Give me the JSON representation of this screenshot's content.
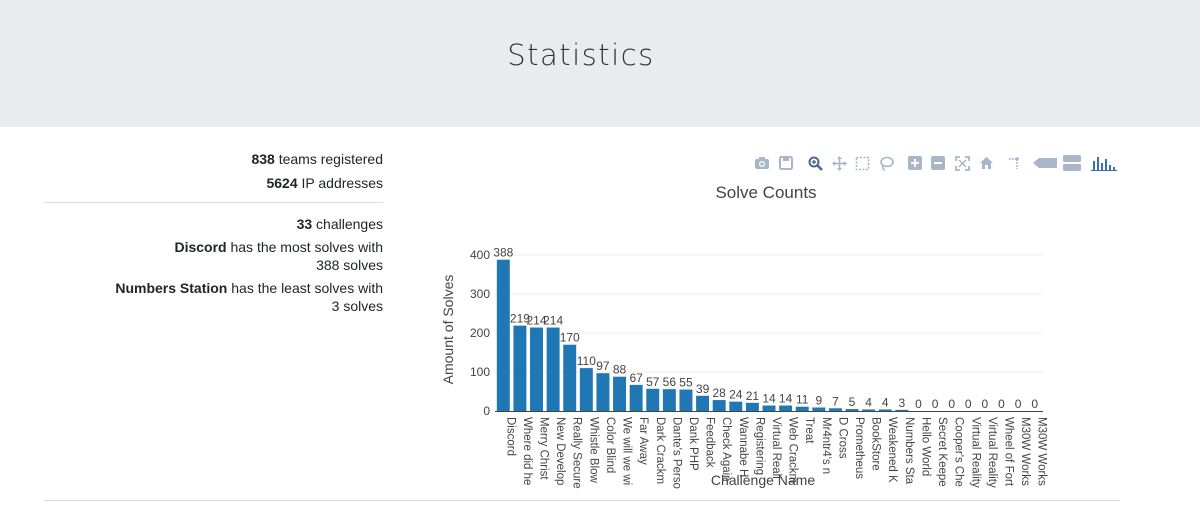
{
  "header": {
    "title": "Statistics"
  },
  "stats": {
    "teams_count": "838",
    "teams_label": " teams registered",
    "ip_count": "5624",
    "ip_label": " IP addresses",
    "challenges_count": "33",
    "challenges_label": " challenges",
    "most_name": "Discord",
    "most_label": " has the most solves with",
    "most_solves": "388 solves",
    "least_name": "Numbers Station",
    "least_label": " has the least solves with",
    "least_solves": "3 solves"
  },
  "modebar": {
    "buttons": [
      "camera-icon",
      "save-icon",
      "zoom-icon",
      "pan-icon",
      "box-select-icon",
      "lasso-select-icon",
      "zoom-in-icon",
      "zoom-out-icon",
      "autoscale-icon",
      "reset-axes-icon",
      "spike-lines-icon",
      "hover-closest-icon",
      "hover-compare-icon",
      "plotly-logo-icon"
    ],
    "icon_color": "#a8b6c8",
    "active_color": "#4a6a96"
  },
  "chart_data": {
    "type": "bar",
    "title": "Solve Counts",
    "xlabel": "Challenge Name",
    "ylabel": "Amount of Solves",
    "ylim": [
      0,
      418
    ],
    "yticks": [
      0,
      100,
      200,
      300,
      400
    ],
    "grid": true,
    "bar_color": "#1f77b4",
    "categories": [
      "Discord",
      "Where did he",
      "Merry Christ",
      "New Develop",
      "Really Secure",
      "Whistle Blow",
      "Color Blind",
      "We will we wi",
      "Far Away",
      "Dark Crackm",
      "Dante's Perso",
      "Dank PHP",
      "Feedback",
      "Check Again",
      "Wannabe H",
      "Registering",
      "Virtual Reali",
      "Web Crackm",
      "Treat",
      "Mr4ntr4's n",
      "D Cross",
      "Prometheus",
      "BookStore",
      "Weakened K",
      "Numbers Sta",
      "Hello World",
      "Secret Keepe",
      "Cooper's Che",
      "Virtual Reality",
      "Virtual Reality",
      "Wheel of Fort",
      "M30W Works",
      "M30W Works"
    ],
    "values": [
      388,
      219,
      214,
      214,
      170,
      110,
      97,
      88,
      67,
      57,
      56,
      55,
      39,
      28,
      24,
      21,
      14,
      14,
      11,
      9,
      7,
      5,
      4,
      4,
      3,
      0,
      0,
      0,
      0,
      0,
      0,
      0,
      0
    ]
  }
}
